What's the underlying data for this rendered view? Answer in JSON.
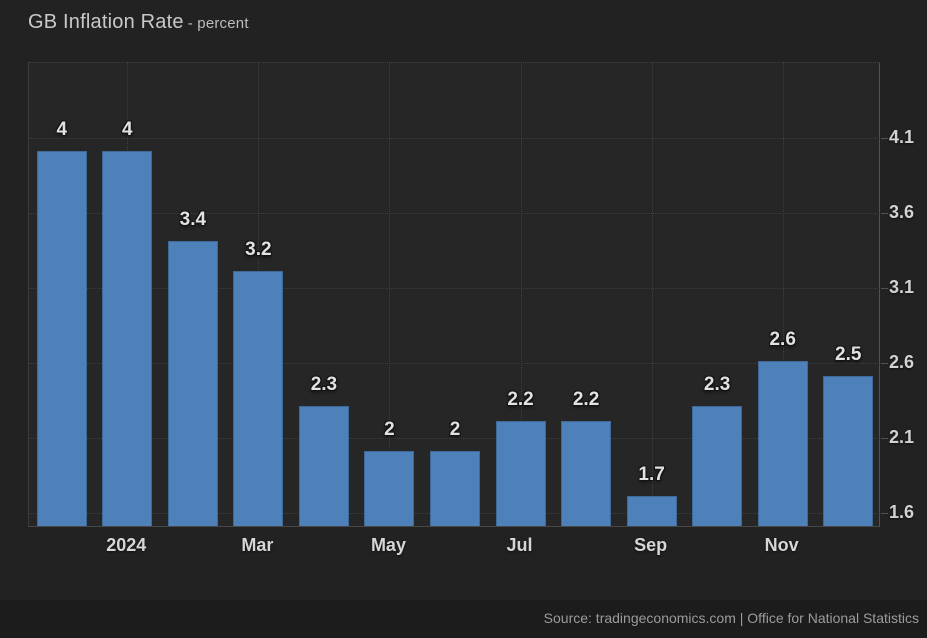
{
  "header": {
    "title": "GB Inflation Rate",
    "subtitle": "- percent"
  },
  "footer": {
    "source": "Source: tradingeconomics.com | Office for National Statistics"
  },
  "chart_data": {
    "type": "bar",
    "title": "GB Inflation Rate",
    "subtitle": "percent",
    "xlabel": "",
    "ylabel": "percent",
    "values": [
      4,
      4,
      3.4,
      3.2,
      2.3,
      2,
      2,
      2.2,
      2.2,
      1.7,
      2.3,
      2.6,
      2.5
    ],
    "value_labels": [
      "4",
      "4",
      "3.4",
      "3.2",
      "2.3",
      "2",
      "2",
      "2.2",
      "2.2",
      "1.7",
      "2.3",
      "2.6",
      "2.5"
    ],
    "x_ticks": [
      {
        "bar_index": 1,
        "label": "2024"
      },
      {
        "bar_index": 3,
        "label": "Mar"
      },
      {
        "bar_index": 5,
        "label": "May"
      },
      {
        "bar_index": 7,
        "label": "Jul"
      },
      {
        "bar_index": 9,
        "label": "Sep"
      },
      {
        "bar_index": 11,
        "label": "Nov"
      }
    ],
    "y_ticks": [
      4.1,
      3.6,
      3.1,
      2.6,
      2.1,
      1.6
    ],
    "ylim": [
      1.5,
      4.6
    ],
    "grid": "dotted-horizontal-and-vertical",
    "legend": "none",
    "y_axis_position": "right",
    "colors": {
      "bar": "#4e80ba",
      "page_background": "#222222",
      "plot_background": "#262626",
      "gridline": "#3e3e3e",
      "axis_line": "#525252",
      "value_label_text": "#e2e2e2",
      "tick_label_text": "#d2d2d2",
      "title_text": "#c9c9c9",
      "source_text": "#9b9b9b",
      "footer_background": "#1c1c1c"
    }
  }
}
